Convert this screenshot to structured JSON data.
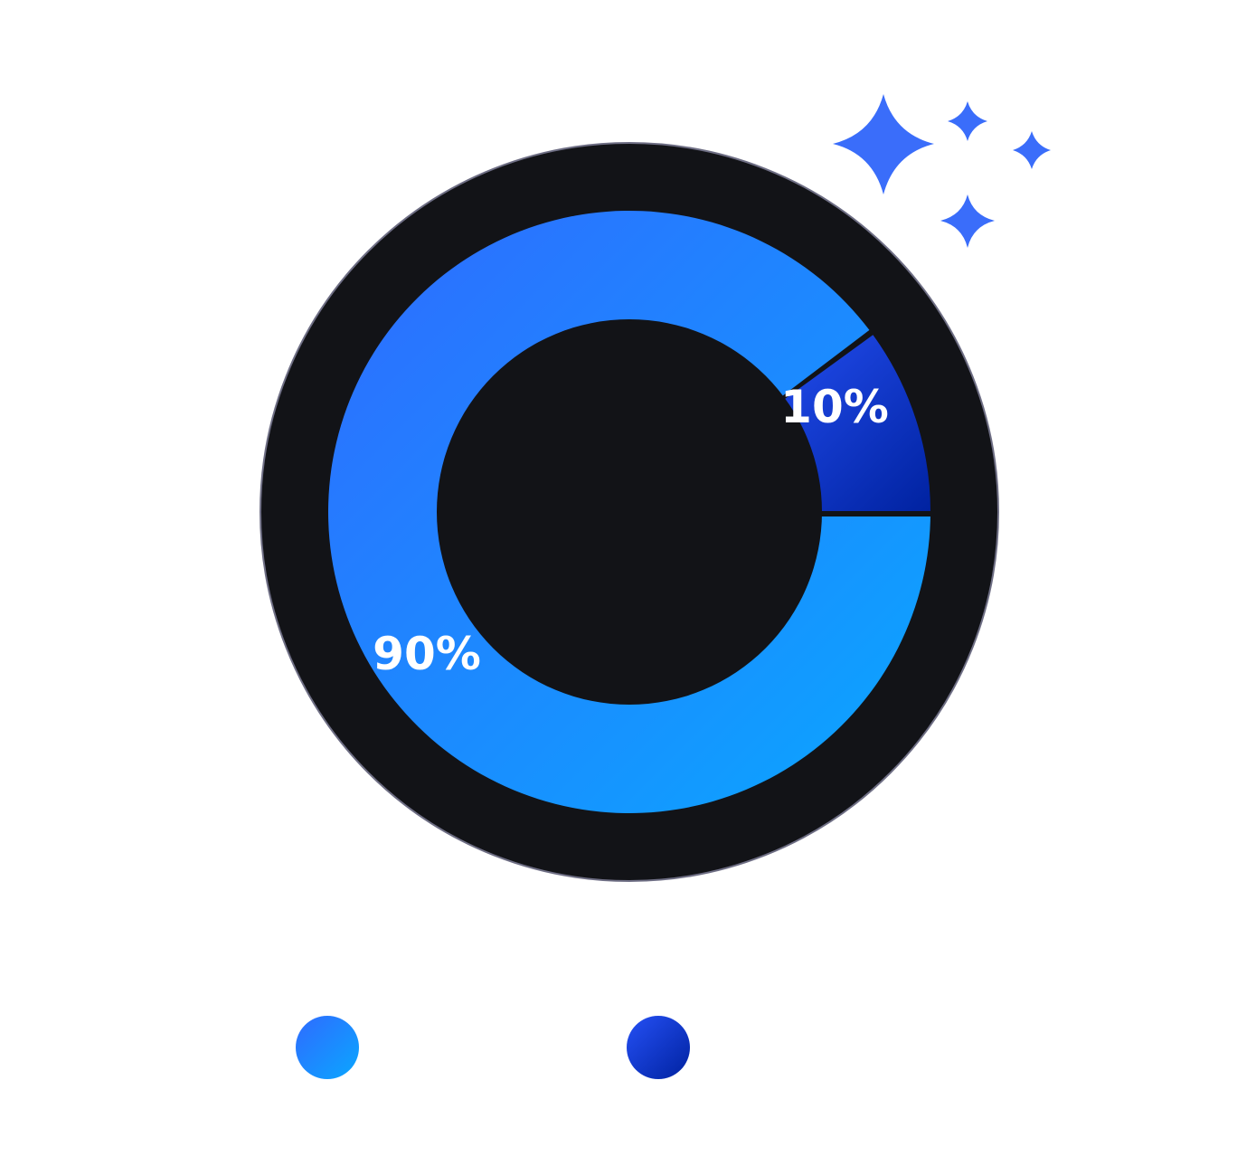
{
  "chart_data": {
    "type": "pie",
    "style": "donut",
    "slices": [
      {
        "value": 90,
        "label": "90%",
        "color": "#2f74ff",
        "gradient": [
          "#2f6bff",
          "#0aa7ff"
        ]
      },
      {
        "value": 10,
        "label": "10%",
        "color": "#1b3fdf",
        "gradient": [
          "#2550f5",
          "#0022a0"
        ]
      }
    ],
    "title": "",
    "legend": {
      "placement": "bottom",
      "entries": [
        {
          "name": "",
          "color": "#1996ff"
        },
        {
          "name": "",
          "color": "#1b3fdf"
        }
      ]
    }
  },
  "colors": {
    "background": "#ffffff",
    "disc": "#121317",
    "disc_outline": "#6e6e84",
    "sparkle": "#3a6dfa",
    "label_text": "#ffffff"
  },
  "decorations": {
    "icon": "sparkles-icon"
  }
}
